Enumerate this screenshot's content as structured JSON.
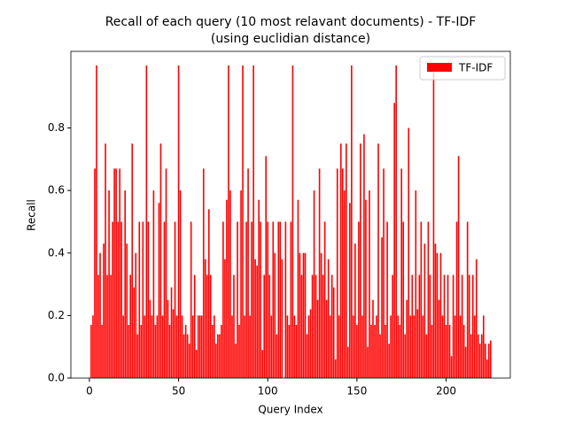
{
  "chart_data": {
    "type": "bar",
    "title": "Recall of each query (10 most relavant documents) - TF-IDF",
    "subtitle": "(using euclidian distance)",
    "x_label": "Query Index",
    "y_label": "Recall",
    "x": [
      1,
      2,
      3,
      4,
      5,
      6,
      7,
      8,
      9,
      10,
      11,
      12,
      13,
      14,
      15,
      16,
      17,
      18,
      19,
      20,
      21,
      22,
      23,
      24,
      25,
      26,
      27,
      28,
      29,
      30,
      31,
      32,
      33,
      34,
      35,
      36,
      37,
      38,
      39,
      40,
      41,
      42,
      43,
      44,
      45,
      46,
      47,
      48,
      49,
      50,
      51,
      52,
      53,
      54,
      55,
      56,
      57,
      58,
      59,
      60,
      61,
      62,
      63,
      64,
      65,
      66,
      67,
      68,
      69,
      70,
      71,
      72,
      73,
      74,
      75,
      76,
      77,
      78,
      79,
      80,
      81,
      82,
      83,
      84,
      85,
      86,
      87,
      88,
      89,
      90,
      91,
      92,
      93,
      94,
      95,
      96,
      97,
      98,
      99,
      100,
      101,
      102,
      103,
      104,
      105,
      106,
      107,
      108,
      109,
      110,
      111,
      112,
      113,
      114,
      115,
      116,
      117,
      118,
      119,
      120,
      121,
      122,
      123,
      124,
      125,
      126,
      127,
      128,
      129,
      130,
      131,
      132,
      133,
      134,
      135,
      136,
      137,
      138,
      139,
      140,
      141,
      142,
      143,
      144,
      145,
      146,
      147,
      148,
      149,
      150,
      151,
      152,
      153,
      154,
      155,
      156,
      157,
      158,
      159,
      160,
      161,
      162,
      163,
      164,
      165,
      166,
      167,
      168,
      169,
      170,
      171,
      172,
      173,
      174,
      175,
      176,
      177,
      178,
      179,
      180,
      181,
      182,
      183,
      184,
      185,
      186,
      187,
      188,
      189,
      190,
      191,
      192,
      193,
      194,
      195,
      196,
      197,
      198,
      199,
      200,
      201,
      202,
      203,
      204,
      205,
      206,
      207,
      208,
      209,
      210,
      211,
      212,
      213,
      214,
      215,
      216,
      217,
      218,
      219,
      220,
      221,
      222,
      223,
      224,
      225
    ],
    "series": [
      {
        "name": "TF-IDF",
        "color": "#ff0000",
        "values": [
          0.17,
          0.2,
          0.67,
          1.0,
          0.33,
          0.4,
          0.17,
          0.43,
          0.75,
          0.33,
          0.6,
          0.33,
          0.5,
          0.67,
          0.67,
          0.5,
          0.67,
          0.5,
          0.2,
          0.6,
          0.43,
          0.17,
          0.33,
          0.75,
          0.29,
          0.4,
          0.14,
          0.5,
          0.17,
          0.5,
          0.2,
          1.0,
          0.5,
          0.25,
          0.2,
          0.6,
          0.17,
          0.2,
          0.56,
          0.75,
          0.2,
          0.5,
          0.67,
          0.25,
          0.17,
          0.29,
          0.22,
          0.5,
          0.2,
          1.0,
          0.6,
          0.2,
          0.14,
          0.17,
          0.14,
          0.11,
          0.5,
          0.2,
          0.33,
          0.09,
          0.2,
          0.2,
          0.2,
          0.67,
          0.38,
          0.33,
          0.54,
          0.33,
          0.17,
          0.2,
          0.11,
          0.14,
          0.14,
          0.17,
          0.5,
          0.38,
          0.57,
          1.0,
          0.6,
          0.2,
          0.33,
          0.11,
          0.5,
          0.17,
          0.6,
          1.0,
          0.2,
          0.5,
          0.67,
          0.2,
          0.5,
          1.0,
          0.38,
          0.36,
          0.57,
          0.5,
          0.09,
          0.33,
          0.71,
          0.5,
          0.33,
          0.2,
          0.5,
          0.4,
          0.14,
          0.5,
          0.5,
          0.38,
          0,
          0.5,
          0.2,
          0.17,
          0.5,
          1.0,
          0.2,
          0.17,
          0.57,
          0.4,
          0.33,
          0.4,
          0.4,
          0.14,
          0.2,
          0.22,
          0.33,
          0.6,
          0.33,
          0.25,
          0.67,
          0.4,
          0.33,
          0.5,
          0.25,
          0.38,
          0.2,
          0.33,
          0.29,
          0.06,
          0.67,
          0.2,
          0.75,
          0.67,
          0.6,
          0.75,
          0.1,
          0.56,
          1.0,
          0.2,
          0.43,
          0.17,
          0.5,
          0.75,
          0.2,
          0.78,
          0.57,
          0.1,
          0.6,
          0.17,
          0.25,
          0.17,
          0.2,
          0.75,
          0.14,
          0.45,
          0.67,
          0.17,
          0.5,
          0.11,
          0.2,
          0.33,
          0.88,
          1.0,
          0.2,
          0.17,
          0.67,
          0.5,
          0.14,
          0.25,
          0.8,
          0.2,
          0.33,
          0.2,
          0.6,
          0.22,
          0.33,
          0.5,
          0.2,
          0.43,
          0.14,
          0.5,
          0.33,
          0.17,
          1.0,
          0.43,
          0.4,
          0.25,
          0.4,
          0.2,
          0.33,
          0.17,
          0.33,
          0.17,
          0.07,
          0.33,
          0.2,
          0.5,
          0.71,
          0.2,
          0.33,
          0.17,
          0.1,
          0.5,
          0.33,
          0.14,
          0.33,
          0.2,
          0.38,
          0.14,
          0.11,
          0.14,
          0.2,
          0.11,
          0.06,
          0.11,
          0.12
        ]
      }
    ],
    "xlim": [
      -10.4,
      236
    ],
    "xticks": [
      0,
      50,
      100,
      150,
      200
    ],
    "ylim": [
      0,
      1.045
    ],
    "yticks": [
      {
        "value": 0,
        "label": "0.0"
      },
      0.2,
      0.4,
      0.6,
      0.8
    ],
    "legend": "upper right"
  }
}
